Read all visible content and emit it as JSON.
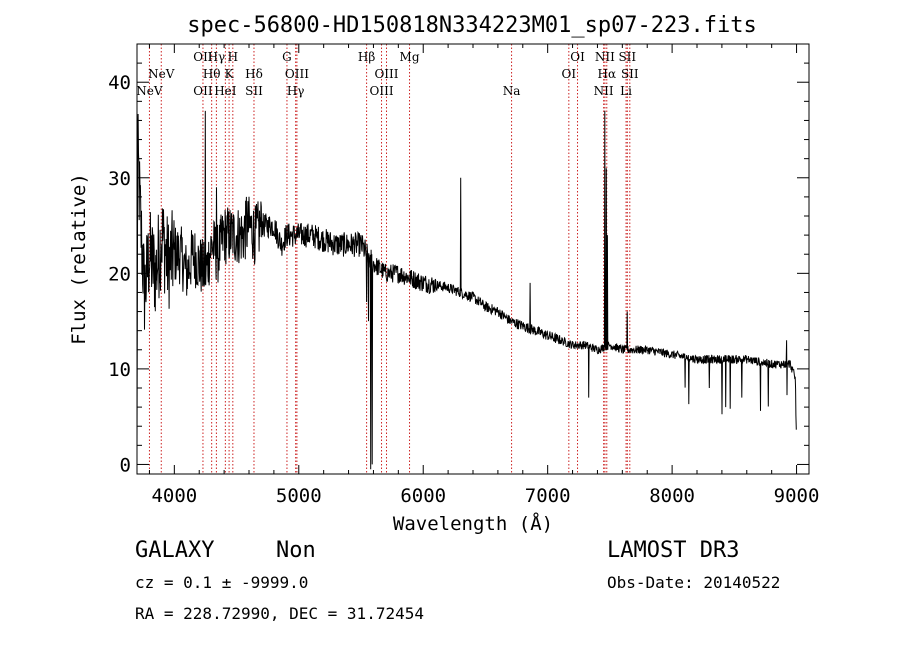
{
  "chart_data": {
    "type": "line",
    "title": "spec-56800-HD150818N334223M01_sp07-223.fits",
    "xlabel": "Wavelength (Å)",
    "ylabel": "Flux (relative)",
    "xlim": [
      3700,
      9100
    ],
    "ylim": [
      -1,
      44
    ],
    "xticks": [
      4000,
      5000,
      6000,
      7000,
      8000,
      9000
    ],
    "yticks": [
      0,
      10,
      20,
      30,
      40
    ],
    "color": "#000000",
    "line_marker_color": "#cc2222",
    "spectrum_knots": [
      [
        3700,
        0
      ],
      [
        3705,
        33
      ],
      [
        3730,
        25
      ],
      [
        3760,
        18
      ],
      [
        3800,
        22
      ],
      [
        3850,
        20
      ],
      [
        3900,
        24
      ],
      [
        3950,
        21
      ],
      [
        4000,
        22
      ],
      [
        4050,
        22
      ],
      [
        4100,
        20
      ],
      [
        4150,
        22
      ],
      [
        4200,
        21
      ],
      [
        4250,
        20
      ],
      [
        4300,
        23
      ],
      [
        4350,
        22
      ],
      [
        4400,
        24
      ],
      [
        4450,
        24
      ],
      [
        4500,
        24
      ],
      [
        4550,
        24
      ],
      [
        4600,
        25
      ],
      [
        4650,
        24
      ],
      [
        4700,
        25
      ],
      [
        4800,
        25
      ],
      [
        4860,
        23
      ],
      [
        4900,
        24
      ],
      [
        5000,
        24
      ],
      [
        5100,
        24
      ],
      [
        5200,
        23.5
      ],
      [
        5300,
        23
      ],
      [
        5400,
        23
      ],
      [
        5500,
        23
      ],
      [
        5550,
        22
      ],
      [
        5600,
        21
      ],
      [
        5700,
        20
      ],
      [
        5800,
        20
      ],
      [
        5900,
        19.5
      ],
      [
        6000,
        19
      ],
      [
        6100,
        18.8
      ],
      [
        6200,
        18.5
      ],
      [
        6300,
        18
      ],
      [
        6400,
        17.5
      ],
      [
        6500,
        16.5
      ],
      [
        6600,
        16
      ],
      [
        6700,
        15
      ],
      [
        6800,
        14.5
      ],
      [
        6900,
        14
      ],
      [
        7000,
        13.5
      ],
      [
        7100,
        13
      ],
      [
        7200,
        12.5
      ],
      [
        7300,
        12.5
      ],
      [
        7400,
        12
      ],
      [
        7500,
        12.5
      ],
      [
        7600,
        12
      ],
      [
        7700,
        12
      ],
      [
        7800,
        12
      ],
      [
        8000,
        11.5
      ],
      [
        8200,
        11
      ],
      [
        8400,
        11
      ],
      [
        8600,
        11
      ],
      [
        8800,
        10.5
      ],
      [
        8950,
        10.5
      ],
      [
        8990,
        9
      ],
      [
        9000,
        2
      ]
    ],
    "spectrum_features": [
      {
        "x": 4250,
        "y": 37
      },
      {
        "x": 4340,
        "y": 29
      },
      {
        "x": 4580,
        "y": 28
      },
      {
        "x": 4700,
        "y": 27
      },
      {
        "x": 5545,
        "y": 17
      },
      {
        "x": 5560,
        "y": 15
      },
      {
        "x": 5577,
        "y": -0.5
      },
      {
        "x": 5590,
        "y": 0
      },
      {
        "x": 6300,
        "y": 30
      },
      {
        "x": 6860,
        "y": 19
      },
      {
        "x": 7460,
        "y": 37
      },
      {
        "x": 7470,
        "y": 31
      },
      {
        "x": 7480,
        "y": 24
      },
      {
        "x": 7640,
        "y": 16
      },
      {
        "x": 8430,
        "y": 6
      },
      {
        "x": 8300,
        "y": 8
      },
      {
        "x": 8560,
        "y": 7
      },
      {
        "x": 7330,
        "y": 7
      },
      {
        "x": 8920,
        "y": 13
      }
    ],
    "emission_lines": [
      {
        "name": "NeV",
        "x": 3800,
        "row": 3
      },
      {
        "name": "NeV",
        "x": 3895,
        "row": 2
      },
      {
        "name": "OII",
        "x": 4230,
        "row": 1
      },
      {
        "name": "OII",
        "x": 4230,
        "row": 3
      },
      {
        "name": "Hγ",
        "x": 4338,
        "row": 1
      },
      {
        "name": "Hθ",
        "x": 4300,
        "row": 2
      },
      {
        "name": "H",
        "x": 4470,
        "row": 1
      },
      {
        "name": "HeI",
        "x": 4410,
        "row": 3
      },
      {
        "name": "K",
        "x": 4440,
        "row": 2
      },
      {
        "name": "Hδ",
        "x": 4640,
        "row": 2
      },
      {
        "name": "SII",
        "x": 4640,
        "row": 3
      },
      {
        "name": "G",
        "x": 4905,
        "row": 1
      },
      {
        "name": "OIII",
        "x": 4985,
        "row": 2
      },
      {
        "name": "Hγ",
        "x": 4975,
        "row": 3
      },
      {
        "name": "Hβ",
        "x": 5545,
        "row": 1
      },
      {
        "name": "OIII",
        "x": 5705,
        "row": 2
      },
      {
        "name": "OIII",
        "x": 5665,
        "row": 3
      },
      {
        "name": "Mg",
        "x": 5890,
        "row": 1
      },
      {
        "name": "Na",
        "x": 6710,
        "row": 3
      },
      {
        "name": "OI",
        "x": 7240,
        "row": 1
      },
      {
        "name": "OI",
        "x": 7170,
        "row": 2
      },
      {
        "name": "NII",
        "x": 7460,
        "row": 1
      },
      {
        "name": "Hα",
        "x": 7475,
        "row": 2
      },
      {
        "name": "NII",
        "x": 7450,
        "row": 3
      },
      {
        "name": "SII",
        "x": 7640,
        "row": 1
      },
      {
        "name": "SII",
        "x": 7660,
        "row": 2
      },
      {
        "name": "Li",
        "x": 7630,
        "row": 3
      }
    ]
  },
  "info": {
    "class": "GALAXY",
    "subclass": "Non",
    "survey": "LAMOST DR3",
    "cz": "cz = 0.1 ± -9999.0",
    "obs_date": "Obs-Date: 20140522",
    "radec": "RA = 228.72990, DEC =  31.72454"
  }
}
